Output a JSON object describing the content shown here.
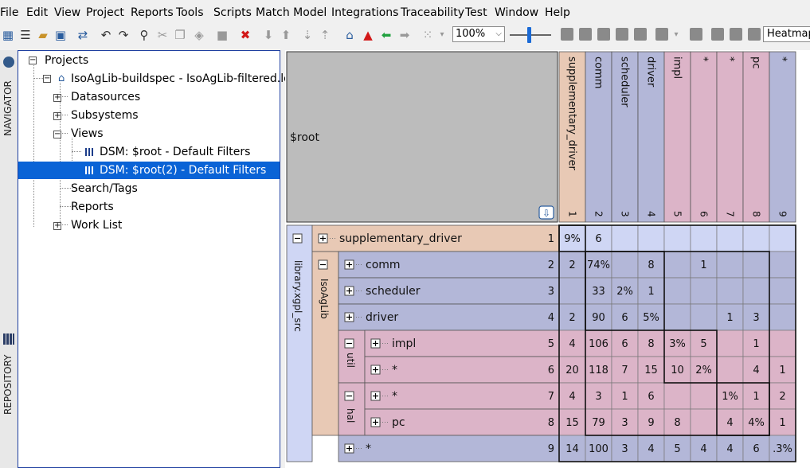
{
  "menu": [
    "File",
    "Edit",
    "View",
    "Project",
    "Reports",
    "Tools",
    "Scripts",
    "Match Model",
    "Integrations",
    "Traceability",
    "Test",
    "Window",
    "Help"
  ],
  "toolbar": {
    "zoom": "100%",
    "view_mode": "Heatmap"
  },
  "side_tabs": {
    "navigator": "NAVIGATOR",
    "repository": "REPOSITORY"
  },
  "navigator": {
    "items": [
      {
        "label": "Projects",
        "toggle": "−"
      },
      {
        "label": "IsoAgLib-buildspec - IsoAgLib-filtered.ldz",
        "toggle": "−"
      },
      {
        "label": "Datasources",
        "toggle": "+"
      },
      {
        "label": "Subsystems",
        "toggle": "+"
      },
      {
        "label": "Views",
        "toggle": "−"
      },
      {
        "label": "DSM: $root - Default Filters",
        "toggle": ""
      },
      {
        "label": "DSM: $root(2) - Default Filters",
        "toggle": ""
      },
      {
        "label": "Search/Tags",
        "toggle": ""
      },
      {
        "label": "Reports",
        "toggle": ""
      },
      {
        "label": "Work List",
        "toggle": "+"
      }
    ]
  },
  "dsm": {
    "root_label": "$root",
    "group_labels": {
      "library": "library.xgpl_src",
      "isoaglib": "IsoAgLib",
      "util": "util",
      "hal": "hal"
    },
    "colors": {
      "orange": "#e8c9b5",
      "blue": "#b3b7d8",
      "pink": "#dcb4c8",
      "lightblue": "#cfd6f4",
      "header_gray": "#bcbcbc"
    },
    "modules": [
      {
        "name": "supplementary_driver",
        "index": "1"
      },
      {
        "name": "comm",
        "index": "2"
      },
      {
        "name": "scheduler",
        "index": "3"
      },
      {
        "name": "driver",
        "index": "4"
      },
      {
        "name": "impl",
        "index": "5"
      },
      {
        "name": "*",
        "index": "6"
      },
      {
        "name": "*",
        "index": "7"
      },
      {
        "name": "pc",
        "index": "8"
      },
      {
        "name": "*",
        "index": "9"
      }
    ],
    "cells": [
      [
        "9%",
        "6",
        "",
        "",
        "",
        "",
        "",
        "",
        ""
      ],
      [
        "2",
        "74%",
        "",
        "8",
        "",
        "1",
        "",
        "",
        ""
      ],
      [
        "",
        "33",
        "2%",
        "1",
        "",
        "",
        "",
        "",
        ""
      ],
      [
        "2",
        "90",
        "6",
        "5%",
        "",
        "",
        "1",
        "3",
        ""
      ],
      [
        "4",
        "106",
        "6",
        "8",
        "3%",
        "5",
        "",
        "1",
        ""
      ],
      [
        "20",
        "118",
        "7",
        "15",
        "10",
        "2%",
        "",
        "4",
        "1"
      ],
      [
        "4",
        "3",
        "1",
        "6",
        "",
        "",
        "1%",
        "1",
        "2"
      ],
      [
        "15",
        "79",
        "3",
        "9",
        "8",
        "",
        "4",
        "4%",
        "1"
      ],
      [
        "14",
        "100",
        "3",
        "4",
        "5",
        "4",
        "4",
        "6",
        ".3%"
      ]
    ]
  }
}
